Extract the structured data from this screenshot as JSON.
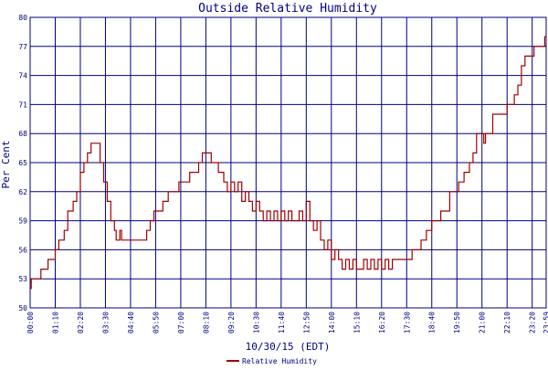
{
  "chart_data": {
    "type": "line",
    "title": "Outside Relative Humidity",
    "xlabel": "10/30/15 (EDT)",
    "ylabel": "Per Cent",
    "ylim": [
      50,
      80
    ],
    "yticks": [
      "50",
      "53",
      "56",
      "59",
      "62",
      "65",
      "68",
      "71",
      "74",
      "77",
      "80"
    ],
    "xticks": [
      "00:00",
      "01:10",
      "02:20",
      "03:30",
      "04:40",
      "05:50",
      "07:00",
      "08:10",
      "09:20",
      "10:30",
      "11:40",
      "12:50",
      "14:00",
      "15:10",
      "16:20",
      "17:30",
      "18:40",
      "19:50",
      "21:00",
      "22:10",
      "23:20"
    ],
    "x_end_label": "23:59",
    "grid": true,
    "legend_position": "bottom-center",
    "colors": {
      "grid": "#000080",
      "axis_text": "#000080",
      "series": "#a00000"
    },
    "series": [
      {
        "name": "Relative Humidity",
        "points": [
          [
            "00:00",
            52
          ],
          [
            "00:03",
            53
          ],
          [
            "00:20",
            53
          ],
          [
            "00:30",
            54
          ],
          [
            "00:45",
            54
          ],
          [
            "00:50",
            55
          ],
          [
            "01:05",
            55
          ],
          [
            "01:10",
            56
          ],
          [
            "01:20",
            57
          ],
          [
            "01:35",
            58
          ],
          [
            "01:45",
            60
          ],
          [
            "02:00",
            61
          ],
          [
            "02:10",
            62
          ],
          [
            "02:20",
            64
          ],
          [
            "02:30",
            65
          ],
          [
            "02:40",
            66
          ],
          [
            "02:50",
            67
          ],
          [
            "03:05",
            67
          ],
          [
            "03:15",
            65
          ],
          [
            "03:25",
            63
          ],
          [
            "03:35",
            61
          ],
          [
            "03:45",
            59
          ],
          [
            "03:55",
            58
          ],
          [
            "04:00",
            57
          ],
          [
            "04:10",
            58
          ],
          [
            "04:15",
            57
          ],
          [
            "04:25",
            57
          ],
          [
            "04:40",
            57
          ],
          [
            "05:00",
            57
          ],
          [
            "05:10",
            57
          ],
          [
            "05:25",
            58
          ],
          [
            "05:35",
            59
          ],
          [
            "05:45",
            60
          ],
          [
            "06:00",
            60
          ],
          [
            "06:10",
            61
          ],
          [
            "06:25",
            62
          ],
          [
            "06:40",
            62
          ],
          [
            "06:55",
            63
          ],
          [
            "07:10",
            63
          ],
          [
            "07:25",
            64
          ],
          [
            "07:40",
            64
          ],
          [
            "07:50",
            65
          ],
          [
            "08:00",
            66
          ],
          [
            "08:15",
            66
          ],
          [
            "08:25",
            65
          ],
          [
            "08:35",
            65
          ],
          [
            "08:45",
            64
          ],
          [
            "09:00",
            63
          ],
          [
            "09:10",
            62
          ],
          [
            "09:20",
            63
          ],
          [
            "09:30",
            62
          ],
          [
            "09:40",
            63
          ],
          [
            "09:50",
            61
          ],
          [
            "10:00",
            62
          ],
          [
            "10:10",
            61
          ],
          [
            "10:20",
            60
          ],
          [
            "10:30",
            61
          ],
          [
            "10:40",
            60
          ],
          [
            "10:50",
            59
          ],
          [
            "11:00",
            60
          ],
          [
            "11:10",
            59
          ],
          [
            "11:20",
            60
          ],
          [
            "11:30",
            59
          ],
          [
            "11:40",
            60
          ],
          [
            "11:50",
            59
          ],
          [
            "12:00",
            60
          ],
          [
            "12:10",
            59
          ],
          [
            "12:20",
            59
          ],
          [
            "12:30",
            60
          ],
          [
            "12:40",
            59
          ],
          [
            "12:50",
            61
          ],
          [
            "13:00",
            59
          ],
          [
            "13:10",
            58
          ],
          [
            "13:20",
            59
          ],
          [
            "13:30",
            57
          ],
          [
            "13:40",
            56
          ],
          [
            "13:50",
            57
          ],
          [
            "14:00",
            55
          ],
          [
            "14:10",
            56
          ],
          [
            "14:20",
            55
          ],
          [
            "14:30",
            54
          ],
          [
            "14:40",
            55
          ],
          [
            "14:50",
            54
          ],
          [
            "15:00",
            55
          ],
          [
            "15:10",
            54
          ],
          [
            "15:20",
            54
          ],
          [
            "15:30",
            55
          ],
          [
            "15:40",
            54
          ],
          [
            "15:50",
            55
          ],
          [
            "16:00",
            54
          ],
          [
            "16:10",
            55
          ],
          [
            "16:20",
            54
          ],
          [
            "16:30",
            55
          ],
          [
            "16:40",
            54
          ],
          [
            "16:50",
            55
          ],
          [
            "17:00",
            55
          ],
          [
            "17:15",
            55
          ],
          [
            "17:30",
            55
          ],
          [
            "17:45",
            56
          ],
          [
            "18:00",
            56
          ],
          [
            "18:10",
            57
          ],
          [
            "18:25",
            58
          ],
          [
            "18:40",
            59
          ],
          [
            "18:55",
            59
          ],
          [
            "19:05",
            60
          ],
          [
            "19:20",
            60
          ],
          [
            "19:30",
            62
          ],
          [
            "19:45",
            62
          ],
          [
            "19:55",
            63
          ],
          [
            "20:10",
            64
          ],
          [
            "20:25",
            65
          ],
          [
            "20:35",
            66
          ],
          [
            "20:45",
            68
          ],
          [
            "20:55",
            68
          ],
          [
            "21:05",
            67
          ],
          [
            "21:10",
            68
          ],
          [
            "21:15",
            68
          ],
          [
            "21:30",
            70
          ],
          [
            "21:45",
            70
          ],
          [
            "22:00",
            70
          ],
          [
            "22:10",
            71
          ],
          [
            "22:20",
            71
          ],
          [
            "22:30",
            72
          ],
          [
            "22:40",
            73
          ],
          [
            "22:50",
            75
          ],
          [
            "23:00",
            76
          ],
          [
            "23:15",
            76
          ],
          [
            "23:25",
            77
          ],
          [
            "23:40",
            77
          ],
          [
            "23:50",
            77
          ],
          [
            "23:55",
            78
          ],
          [
            "23:59",
            78
          ]
        ]
      }
    ]
  }
}
